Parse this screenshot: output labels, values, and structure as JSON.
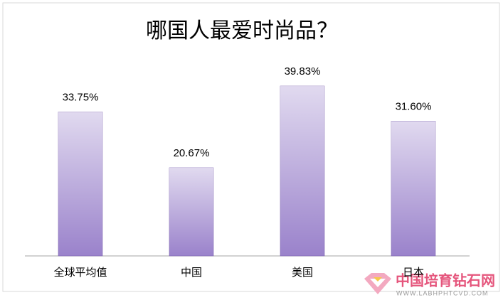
{
  "chart_data": {
    "type": "bar",
    "title": "哪国人最爱时尚品？",
    "categories": [
      "全球平均值",
      "中国",
      "美国",
      "日本"
    ],
    "values": [
      33.75,
      20.67,
      39.83,
      31.6
    ],
    "value_labels": [
      "33.75%",
      "20.67%",
      "39.83%",
      "31.60%"
    ],
    "color": "#9a82cb",
    "ylim": [
      0,
      45
    ]
  },
  "watermark": {
    "name": "中国培育钻石网",
    "url": "WWW.LABHPHTCVD.COM"
  }
}
